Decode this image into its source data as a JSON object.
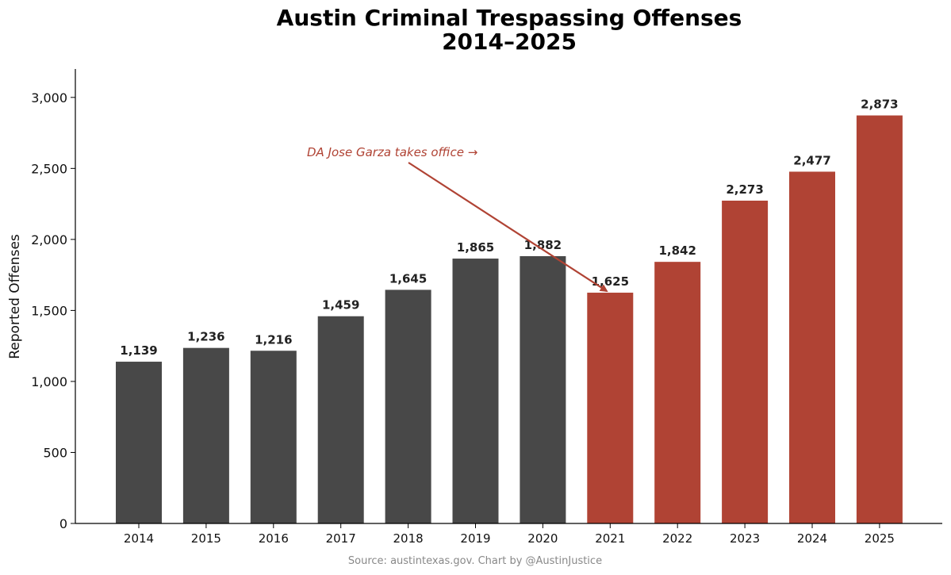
{
  "chart_data": {
    "type": "bar",
    "title_line1": "Austin Criminal Trespassing Offenses",
    "title_line2": "2014–2025",
    "xlabel": "",
    "ylabel": "Reported Offenses",
    "ylim": [
      0,
      3200
    ],
    "yticks": [
      0,
      500,
      1000,
      1500,
      2000,
      2500,
      3000
    ],
    "ytick_labels": [
      "0",
      "500",
      "1,000",
      "1,500",
      "2,000",
      "2,500",
      "3,000"
    ],
    "categories": [
      "2014",
      "2015",
      "2016",
      "2017",
      "2018",
      "2019",
      "2020",
      "2021",
      "2022",
      "2023",
      "2024",
      "2025"
    ],
    "values": [
      1139,
      1236,
      1216,
      1459,
      1645,
      1865,
      1882,
      1625,
      1842,
      2273,
      2477,
      2873
    ],
    "value_labels": [
      "1,139",
      "1,236",
      "1,216",
      "1,459",
      "1,645",
      "1,865",
      "1,882",
      "1,625",
      "1,842",
      "2,273",
      "2,477",
      "2,873"
    ],
    "bar_colors": [
      "#484848",
      "#484848",
      "#484848",
      "#484848",
      "#484848",
      "#484848",
      "#484848",
      "#b04334",
      "#b04334",
      "#b04334",
      "#b04334",
      "#b04334"
    ],
    "grid": false,
    "annotation": {
      "text": "DA Jose Garza takes office →",
      "color": "#b04334",
      "points_to": "2021"
    },
    "source": "Source: austintexas.gov. Chart by @AustinJustice"
  }
}
